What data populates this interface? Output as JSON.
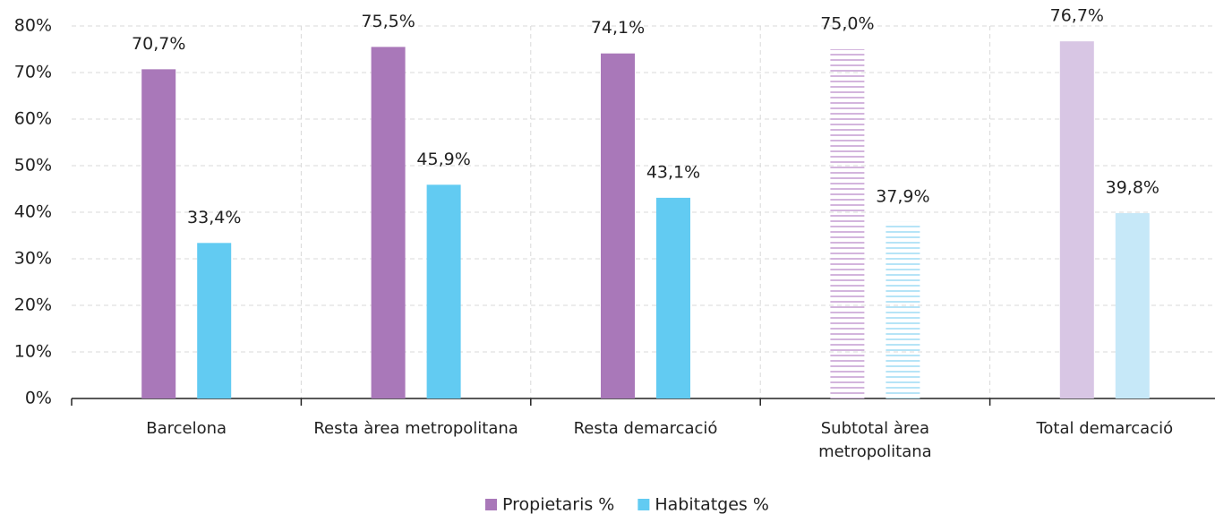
{
  "chart_data": {
    "type": "bar",
    "categories": [
      "Barcelona",
      "Resta àrea metropolitana",
      "Resta demarcació",
      "Subtotal àrea metropolitana",
      "Total demarcació"
    ],
    "series": [
      {
        "name": "Propietaris %",
        "color": "#a978b9",
        "colors": [
          "#a978b9",
          "#a978b9",
          "#a978b9",
          "#a978b9",
          "#d8c6e4"
        ],
        "fill_styles": [
          "solid",
          "solid",
          "solid",
          "striped",
          "solid"
        ],
        "values": [
          70.7,
          75.5,
          74.1,
          75.0,
          76.7
        ],
        "value_labels": [
          "70,7%",
          "75,5%",
          "74,1%",
          "75,0%",
          "76,7%"
        ]
      },
      {
        "name": "Habitatges %",
        "color": "#62cbf2",
        "colors": [
          "#62cbf2",
          "#62cbf2",
          "#62cbf2",
          "#62cbf2",
          "#c6e8f8"
        ],
        "fill_styles": [
          "solid",
          "solid",
          "solid",
          "striped",
          "solid"
        ],
        "values": [
          33.4,
          45.9,
          43.1,
          37.9,
          39.8
        ],
        "value_labels": [
          "33,4%",
          "45,9%",
          "43,1%",
          "37,9%",
          "39,8%"
        ]
      }
    ],
    "ylim": [
      0,
      80
    ],
    "yticks": [
      {
        "value": 0,
        "label": "0%"
      },
      {
        "value": 10,
        "label": "10%"
      },
      {
        "value": 20,
        "label": "20%"
      },
      {
        "value": 30,
        "label": "30%"
      },
      {
        "value": 40,
        "label": "40%"
      },
      {
        "value": 50,
        "label": "50%"
      },
      {
        "value": 60,
        "label": "60%"
      },
      {
        "value": 70,
        "label": "70%"
      },
      {
        "value": 80,
        "label": "80%"
      }
    ],
    "grid": true,
    "legend": "bottom"
  }
}
